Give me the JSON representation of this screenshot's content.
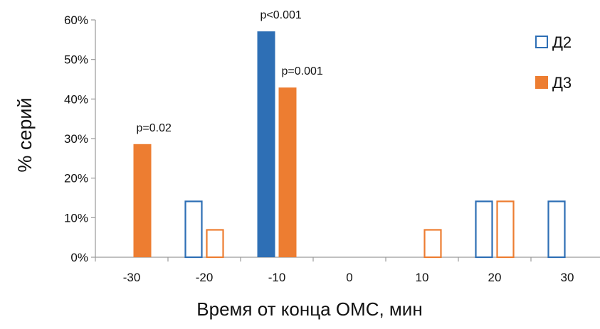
{
  "chart_data": {
    "type": "bar",
    "title": "",
    "xlabel": "Время от конца ОМС, мин",
    "ylabel": "% серий",
    "categories": [
      "-30",
      "-20",
      "-10",
      "0",
      "10",
      "20",
      "30"
    ],
    "ylim": [
      0,
      60
    ],
    "y_ticks": [
      0,
      10,
      20,
      30,
      40,
      50,
      60
    ],
    "y_tick_labels": [
      "0%",
      "10%",
      "20%",
      "30%",
      "40%",
      "50%",
      "60%"
    ],
    "grid": false,
    "legend_position": "top-right",
    "series": [
      {
        "name": "Д2",
        "values": [
          0,
          14.3,
          57.1,
          0,
          0,
          14.3,
          14.3
        ],
        "filled": [
          false,
          false,
          true,
          false,
          false,
          false,
          false
        ]
      },
      {
        "name": "Д3",
        "values": [
          28.6,
          7.1,
          42.9,
          0,
          7.1,
          14.3,
          0
        ],
        "filled": [
          true,
          false,
          true,
          false,
          false,
          false,
          false
        ]
      }
    ],
    "annotations": [
      {
        "category": "-30",
        "series": "Д3",
        "text": "p=0.02"
      },
      {
        "category": "-10",
        "series": "Д2",
        "text": "p<0.001"
      },
      {
        "category": "-10",
        "series": "Д3",
        "text": "p=0.001"
      }
    ]
  },
  "colors": {
    "d2": "#2e6fb5",
    "d3": "#ed7d31",
    "axis": "#9a9a9a"
  }
}
